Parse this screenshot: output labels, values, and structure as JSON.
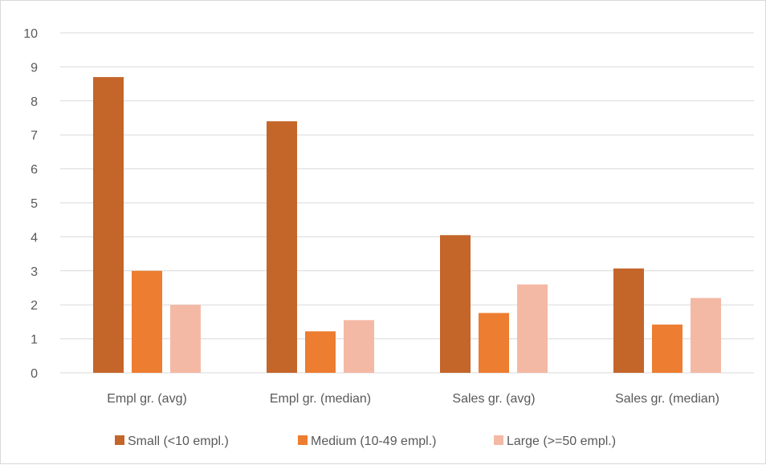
{
  "chart_data": {
    "type": "bar",
    "title": "",
    "xlabel": "",
    "ylabel": "",
    "ylim": [
      0,
      10
    ],
    "yticks": [
      0,
      1,
      2,
      3,
      4,
      5,
      6,
      7,
      8,
      9,
      10
    ],
    "grid": true,
    "legend_position": "bottom",
    "categories": [
      "Empl gr. (avg)",
      "Empl gr. (median)",
      "Sales gr. (avg)",
      "Sales gr. (median)"
    ],
    "series": [
      {
        "name": "Small (<10 empl.)",
        "color": "#c4652a",
        "values": [
          8.7,
          7.4,
          4.05,
          3.07
        ]
      },
      {
        "name": "Medium (10-49 empl.)",
        "color": "#ed7d31",
        "values": [
          3.0,
          1.22,
          1.76,
          1.42
        ]
      },
      {
        "name": "Large (>=50 empl.)",
        "color": "#f4b9a5",
        "values": [
          2.0,
          1.55,
          2.6,
          2.2
        ]
      }
    ]
  }
}
